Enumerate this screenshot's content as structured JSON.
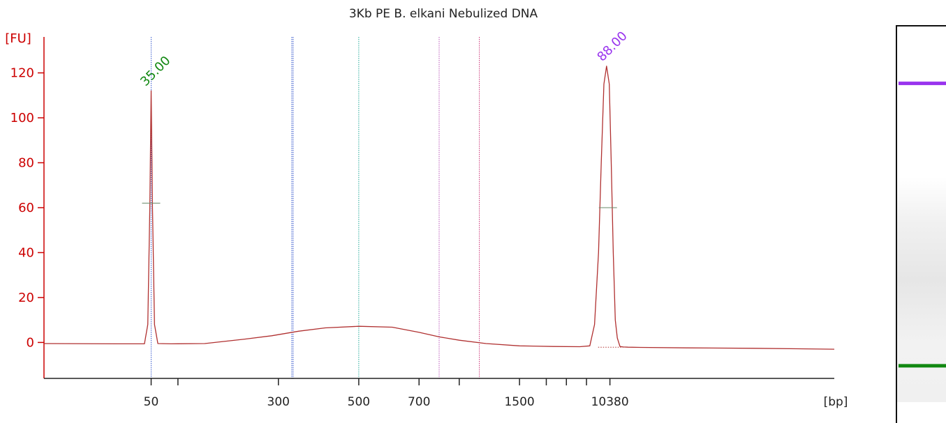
{
  "chart_data": {
    "type": "line",
    "title": "3Kb PE B. elkani Nebulized DNA",
    "ylabel": "[FU]",
    "xlabel": "[bp]",
    "yticks": [
      0,
      20,
      40,
      60,
      80,
      100,
      120
    ],
    "ylim": [
      -16,
      136
    ],
    "xticks_labeled": [
      {
        "label": "50",
        "pos": 0
      },
      {
        "label": "300",
        "pos": 1.9
      },
      {
        "label": "500",
        "pos": 3.1
      },
      {
        "label": "700",
        "pos": 4.0
      },
      {
        "label": "1500",
        "pos": 5.5
      },
      {
        "label": "10380",
        "pos": 6.85
      }
    ],
    "xticks_minor_pos": [
      0.4,
      4.6,
      5.9,
      6.2,
      6.5
    ],
    "xlim": [
      -1.6,
      10.2
    ],
    "series": [
      {
        "color": "#b03030",
        "x": [
          -1.6,
          -0.5,
          -0.1,
          -0.05,
          -0.02,
          0.0,
          0.02,
          0.05,
          0.1,
          0.3,
          0.8,
          1.4,
          1.8,
          2.2,
          2.6,
          3.1,
          3.6,
          4.0,
          4.3,
          4.6,
          5.0,
          5.5,
          6.0,
          6.4,
          6.55,
          6.62,
          6.68,
          6.72,
          6.76,
          6.8,
          6.84,
          6.87,
          6.9,
          6.93,
          6.96,
          7.0,
          7.05,
          7.12,
          7.3,
          8.0,
          9.0,
          10.2
        ],
        "y": [
          -0.5,
          -0.6,
          -0.6,
          8,
          60,
          112,
          60,
          8,
          -0.5,
          -0.6,
          -0.5,
          1.5,
          3,
          5,
          6.5,
          7.2,
          6.8,
          4.5,
          2.5,
          1,
          -0.5,
          -1.5,
          -1.8,
          -1.9,
          -1.5,
          8,
          40,
          80,
          115,
          123,
          115,
          80,
          40,
          10,
          2,
          -1.8,
          -2.0,
          -2.1,
          -2.2,
          -2.4,
          -2.6,
          -3
        ]
      }
    ],
    "peaks": [
      {
        "label": "35.00",
        "pos": 0.0,
        "value": 112,
        "half_height": 62,
        "color": "#118811"
      },
      {
        "label": "88.00",
        "pos": 6.82,
        "value": 123,
        "half_height": 60,
        "color": "#9933ee"
      }
    ],
    "markers": [
      {
        "pos": 0.0,
        "color": "#3a5cd0"
      },
      {
        "pos": 2.1,
        "color": "#3355cc"
      },
      {
        "pos": 2.12,
        "color": "#3355cc"
      },
      {
        "pos": 3.1,
        "color": "#22aa99"
      },
      {
        "pos": 4.3,
        "color": "#bb55bb"
      },
      {
        "pos": 4.9,
        "color": "#cc3377"
      }
    ],
    "gel": {
      "bands": [
        {
          "level": 0.145,
          "color": "#9933ee"
        },
        {
          "level": 0.856,
          "color": "#118811"
        }
      ]
    }
  }
}
